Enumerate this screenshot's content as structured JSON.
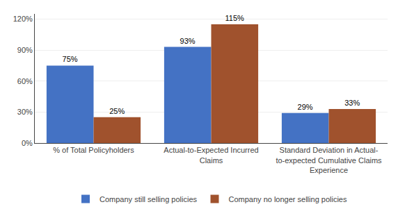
{
  "chart_data": {
    "type": "bar",
    "categories": [
      "% of Total Policyholders",
      "Actual-to-Expected Incurred\nClaims",
      "Standard Deviation in Actual-\nto-expected Cumulative Claims\nExperience"
    ],
    "series": [
      {
        "name": "Company still selling policies",
        "color": "#4472C4",
        "values": [
          75,
          93,
          29
        ],
        "value_labels": [
          "75%",
          "93%",
          "29%"
        ]
      },
      {
        "name": "Company no longer selling policies",
        "color": "#A0522D",
        "values": [
          25,
          115,
          33
        ],
        "value_labels": [
          "25%",
          "115%",
          "33%"
        ]
      }
    ],
    "ylim": [
      0,
      125
    ],
    "yticks": [
      {
        "value": 0,
        "label": "0%"
      },
      {
        "value": 30,
        "label": "30%"
      },
      {
        "value": 60,
        "label": "60%"
      },
      {
        "value": 90,
        "label": "90%"
      },
      {
        "value": 120,
        "label": "120%"
      }
    ],
    "grid": true,
    "legend": "bottom",
    "data_labels": true
  }
}
